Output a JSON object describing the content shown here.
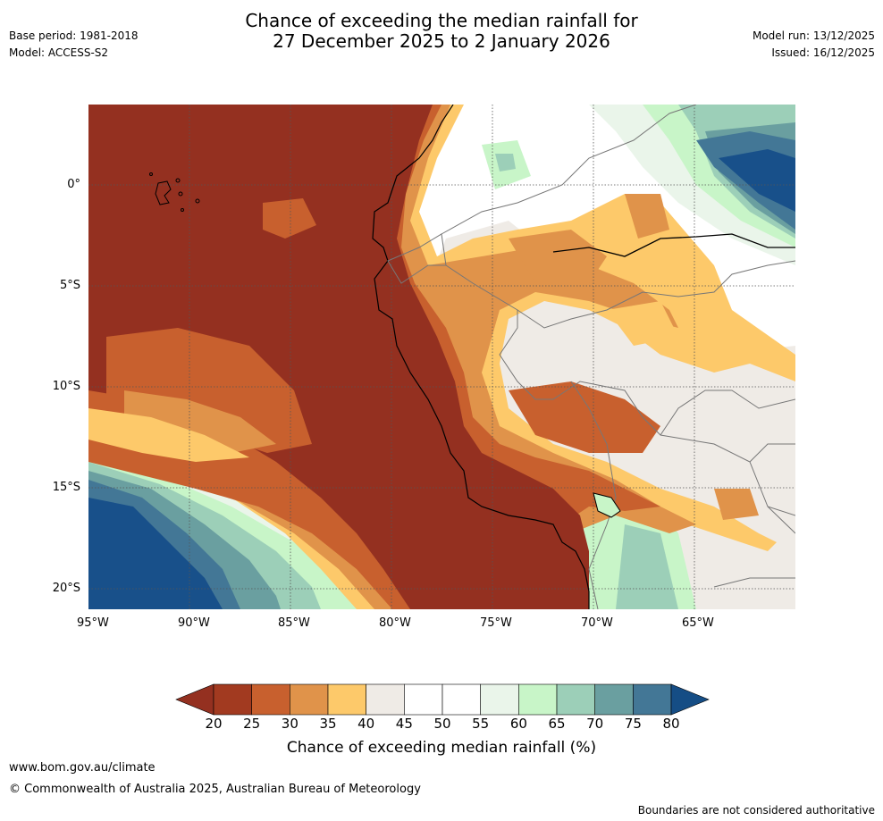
{
  "header": {
    "title_line1": "Chance of exceeding the median rainfall for",
    "title_line2": "27 December 2025 to 2 January 2026",
    "base_period": "Base period: 1981-2018",
    "model": "Model: ACCESS-S2",
    "model_run": "Model run: 13/12/2025",
    "issued": "Issued: 16/12/2025"
  },
  "map": {
    "lon_labels": [
      "95°W",
      "90°W",
      "85°W",
      "80°W",
      "75°W",
      "70°W",
      "65°W"
    ],
    "lat_labels": [
      "0°",
      "5°S",
      "10°S",
      "15°S",
      "20°S"
    ],
    "lon_range": [
      -95,
      -60
    ],
    "lat_range": [
      -21,
      4
    ]
  },
  "colorbar": {
    "ticks": [
      "20",
      "25",
      "30",
      "35",
      "40",
      "45",
      "50",
      "55",
      "60",
      "65",
      "70",
      "75",
      "80"
    ],
    "colors": [
      "#a23a20",
      "#c8602e",
      "#e0934a",
      "#fdc96a",
      "#efebe6",
      "#ffffff",
      "#ffffff",
      "#eaf5ea",
      "#c8f5c8",
      "#9ccfb8",
      "#6a9fa0",
      "#437796",
      "#18508a"
    ],
    "under_color": "#943020",
    "over_color": "#154d85",
    "label": "Chance of exceeding median rainfall (%)"
  },
  "footer": {
    "url": "www.bom.gov.au/climate",
    "copyright": "© Commonwealth of Australia 2025, Australian Bureau of Meteorology",
    "disclaimer": "Boundaries are not considered authoritative"
  }
}
